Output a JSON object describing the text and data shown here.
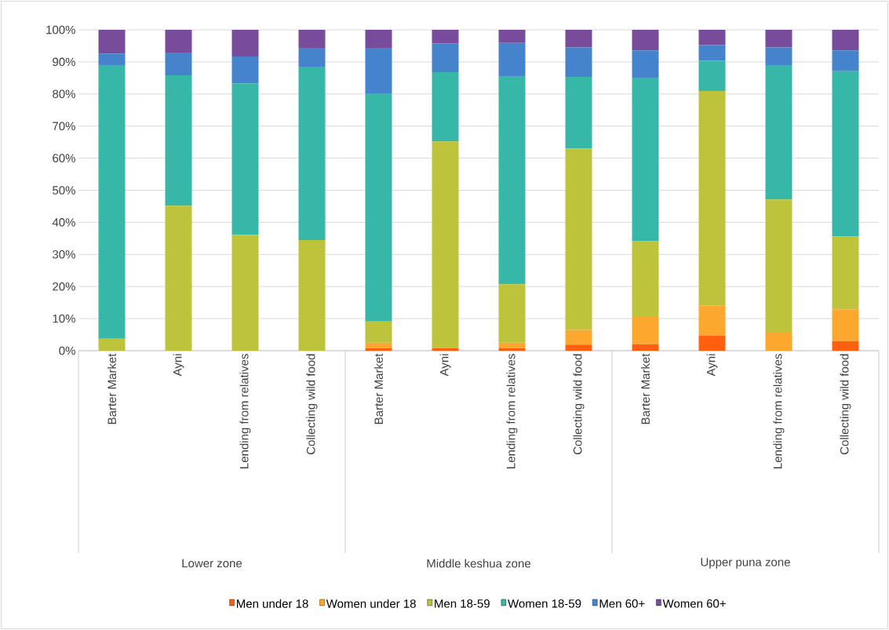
{
  "chart_data": {
    "type": "bar",
    "stacked": true,
    "categories": [
      "Barter Market",
      "Ayni",
      "Lending from relatives",
      "Collecting wild food",
      "Barter Market",
      "Ayni",
      "Lending from relatives",
      "Collecting wild food",
      "Barter Market",
      "Ayni",
      "Lending from relatives",
      "Collecting wild food"
    ],
    "annotations": [
      "Lower zone",
      "Middle keshua zone",
      "Upper puna zone"
    ],
    "series": [
      {
        "name": "Men under 18",
        "color": "#ff5f0e",
        "values": [
          0,
          0,
          0,
          0,
          0.8,
          0.8,
          0.8,
          1.9,
          2.0,
          4.7,
          0,
          3.0
        ]
      },
      {
        "name": "Women under 18",
        "color": "#fca82f",
        "values": [
          0,
          0,
          0,
          0,
          1.7,
          0,
          1.7,
          4.6,
          8.5,
          9.4,
          5.6,
          9.9
        ]
      },
      {
        "name": "Men 18-59",
        "color": "#bdc43b",
        "values": [
          3.7,
          45.2,
          36.1,
          34.5,
          6.6,
          64.4,
          18.2,
          56.5,
          23.6,
          66.8,
          41.5,
          22.7
        ]
      },
      {
        "name": "Women 18-59",
        "color": "#36b7a8",
        "values": [
          85.3,
          40.6,
          47.2,
          54.0,
          71.1,
          21.6,
          64.7,
          22.3,
          51.0,
          9.5,
          41.9,
          51.5
        ]
      },
      {
        "name": "Men 60+",
        "color": "#4583cc",
        "values": [
          3.6,
          7.1,
          8.4,
          5.9,
          14.2,
          8.9,
          10.5,
          9.2,
          8.5,
          4.9,
          5.5,
          6.5
        ]
      },
      {
        "name": "Women 60+",
        "color": "#784c9a",
        "values": [
          7.4,
          7.1,
          8.3,
          5.6,
          5.6,
          4.3,
          4.1,
          5.5,
          6.4,
          4.7,
          5.5,
          6.4
        ]
      }
    ],
    "ylim": [
      0,
      100
    ],
    "yticks": [
      {
        "value": 0,
        "label": "0%"
      },
      {
        "value": 10,
        "label": "10%"
      },
      {
        "value": 20,
        "label": "20%"
      },
      {
        "value": 30,
        "label": "30%"
      },
      {
        "value": 40,
        "label": "40%"
      },
      {
        "value": 50,
        "label": "50%"
      },
      {
        "value": 60,
        "label": "60%"
      },
      {
        "value": 70,
        "label": "70%"
      },
      {
        "value": 80,
        "label": "80%"
      },
      {
        "value": 90,
        "label": "90%"
      },
      {
        "value": 100,
        "label": "100%"
      }
    ],
    "grid": "y",
    "legend": "bottom"
  }
}
